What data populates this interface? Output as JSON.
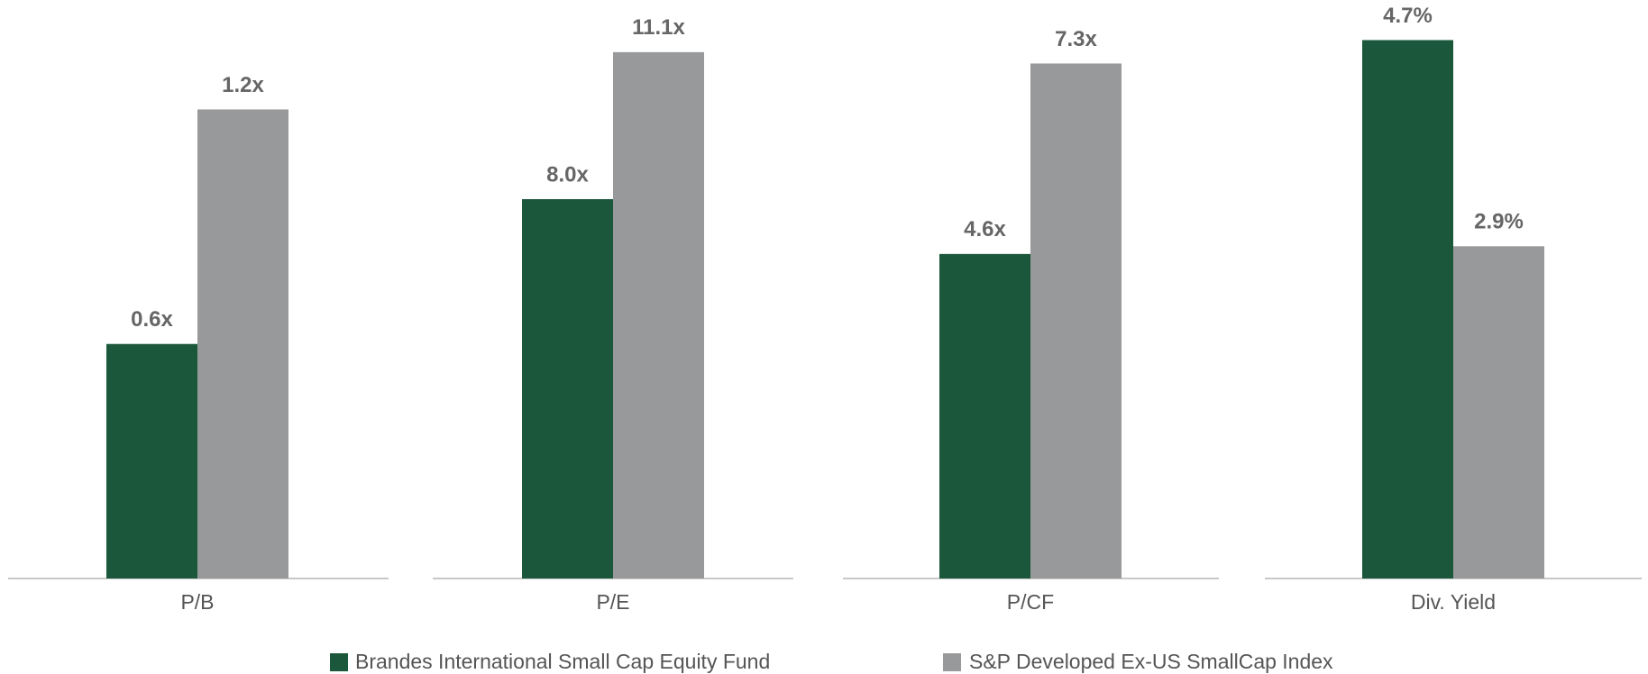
{
  "legend": [
    {
      "name": "Brandes International Small Cap Equity Fund",
      "color": "#1b573b"
    },
    {
      "name": "S&P Developed Ex-US SmallCap Index",
      "color": "#98999b"
    }
  ],
  "chart_data": [
    {
      "type": "bar",
      "categories": [
        "P/B"
      ],
      "ylim": [
        0,
        1.48
      ],
      "series": [
        {
          "values": [
            0.6
          ],
          "value_labels": [
            "0.6x"
          ]
        },
        {
          "values": [
            1.2
          ],
          "value_labels": [
            "1.2x"
          ]
        }
      ]
    },
    {
      "type": "bar",
      "categories": [
        "P/E"
      ],
      "ylim": [
        0,
        12.2
      ],
      "series": [
        {
          "values": [
            8.0
          ],
          "value_labels": [
            "8.0x"
          ]
        },
        {
          "values": [
            11.1
          ],
          "value_labels": [
            "11.1x"
          ]
        }
      ]
    },
    {
      "type": "bar",
      "categories": [
        "P/CF"
      ],
      "ylim": [
        0,
        8.2
      ],
      "series": [
        {
          "values": [
            4.6
          ],
          "value_labels": [
            "4.6x"
          ]
        },
        {
          "values": [
            7.3
          ],
          "value_labels": [
            "7.3x"
          ]
        }
      ]
    },
    {
      "type": "bar",
      "categories": [
        "Div. Yield"
      ],
      "ylim": [
        0,
        5.05
      ],
      "series": [
        {
          "values": [
            4.7
          ],
          "value_labels": [
            "4.7%"
          ]
        },
        {
          "values": [
            2.9
          ],
          "value_labels": [
            "2.9%"
          ]
        }
      ]
    }
  ]
}
